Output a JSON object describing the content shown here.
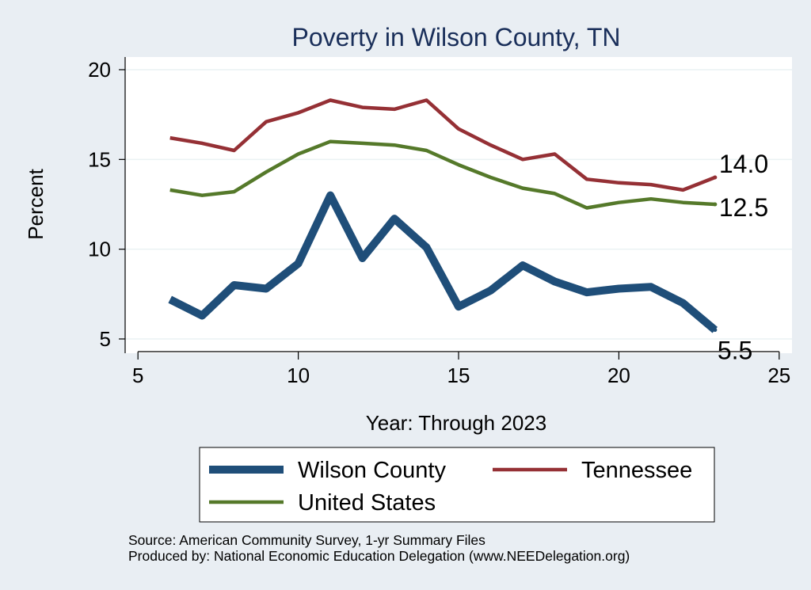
{
  "chart_data": {
    "type": "line",
    "title": "Poverty in Wilson County, TN",
    "xlabel": "Year: Through 2023",
    "ylabel": "Percent",
    "xlim": [
      5,
      25
    ],
    "ylim": [
      5,
      20
    ],
    "xticks": [
      5,
      10,
      15,
      20,
      25
    ],
    "yticks": [
      5,
      10,
      15,
      20
    ],
    "grid": true,
    "series": [
      {
        "name": "Wilson County",
        "color": "#1f4e79",
        "weight": "thick",
        "end_label": "5.5",
        "x": [
          6,
          7,
          8,
          9,
          10,
          11,
          12,
          13,
          14,
          15,
          16,
          17,
          18,
          19,
          20,
          21,
          22,
          23
        ],
        "values": [
          7.2,
          6.3,
          8.0,
          7.8,
          9.2,
          13.0,
          9.5,
          11.7,
          10.1,
          6.8,
          7.7,
          9.1,
          8.2,
          7.6,
          7.8,
          7.9,
          7.0,
          5.5
        ]
      },
      {
        "name": "Tennessee",
        "color": "#953035",
        "weight": "normal",
        "end_label": "14.0",
        "x": [
          6,
          7,
          8,
          9,
          10,
          11,
          12,
          13,
          14,
          15,
          16,
          17,
          18,
          19,
          20,
          21,
          22,
          23
        ],
        "values": [
          16.2,
          15.9,
          15.5,
          17.1,
          17.6,
          18.3,
          17.9,
          17.8,
          18.3,
          16.7,
          15.8,
          15.0,
          15.3,
          13.9,
          13.7,
          13.6,
          13.3,
          14.0
        ]
      },
      {
        "name": "United States",
        "color": "#55792a",
        "weight": "normal",
        "end_label": "12.5",
        "x": [
          6,
          7,
          8,
          9,
          10,
          11,
          12,
          13,
          14,
          15,
          16,
          17,
          18,
          19,
          20,
          21,
          22,
          23
        ],
        "values": [
          13.3,
          13.0,
          13.2,
          14.3,
          15.3,
          16.0,
          15.9,
          15.8,
          15.5,
          14.7,
          14.0,
          13.4,
          13.1,
          12.3,
          12.6,
          12.8,
          12.6,
          12.5
        ]
      }
    ]
  },
  "notes": {
    "source": "Source: American Community Survey, 1-yr Summary Files",
    "produced": "Produced by: National Economic Education Delegation (www.NEEDelegation.org)"
  }
}
